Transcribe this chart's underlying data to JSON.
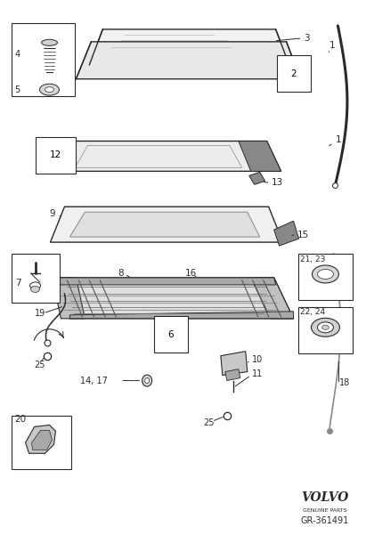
{
  "bg_color": "#ffffff",
  "lc": "#2a2a2a",
  "fig_width": 4.11,
  "fig_height": 6.01,
  "volvo_text": "VOLVO",
  "genuine_text": "GENUINE PARTS",
  "ref_text": "GR-361491"
}
